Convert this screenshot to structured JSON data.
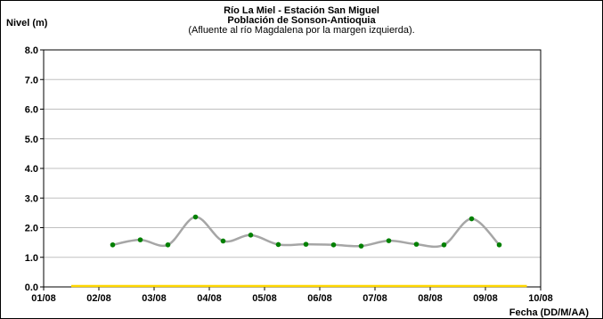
{
  "chart_data": {
    "type": "line",
    "title": "Río La Miel  - Estación San Miguel",
    "subtitle": "Población de Sonson-Antioquia",
    "note": "(Afluente al río Magdalena por la margen izquierda).",
    "ylabel": "Nivel (m)",
    "xlabel": "Fecha (DD/M/AA)",
    "ylim": [
      0,
      8
    ],
    "yticks": [
      "0.0",
      "1.0",
      "2.0",
      "3.0",
      "4.0",
      "5.0",
      "6.0",
      "7.0",
      "8.0"
    ],
    "xlim": [
      1,
      10
    ],
    "xticks": [
      "01/08",
      "02/08",
      "03/08",
      "04/08",
      "05/08",
      "06/08",
      "07/08",
      "08/08",
      "09/08",
      "10/08"
    ],
    "grid": true,
    "series": [
      {
        "color": "#a6a6a6",
        "marker_color": "#008000",
        "x": [
          2.25,
          2.75,
          3.25,
          3.75,
          4.25,
          4.75,
          5.25,
          5.75,
          6.25,
          6.75,
          7.25,
          7.75,
          8.25,
          8.75,
          9.25
        ],
        "y": [
          1.42,
          1.59,
          1.42,
          2.36,
          1.55,
          1.75,
          1.43,
          1.44,
          1.42,
          1.38,
          1.56,
          1.44,
          1.42,
          2.3,
          1.42
        ]
      }
    ],
    "baseline": {
      "color": "#ffd700",
      "x_range": [
        1.5,
        9.75
      ],
      "y": 0
    }
  }
}
